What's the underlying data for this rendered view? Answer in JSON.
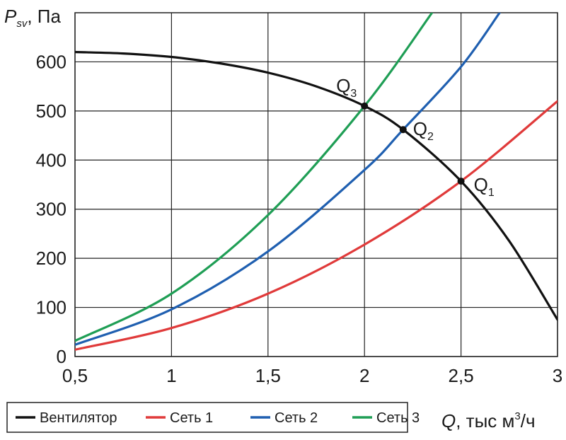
{
  "chart_data": {
    "type": "line",
    "ylabel": {
      "symbol": "P",
      "sub": "sv",
      "unit": ", Па"
    },
    "xlabel": {
      "symbol": "Q",
      "unit": ", тыс м",
      "sup": "3",
      "tail": "/ч"
    },
    "xlim": [
      0.5,
      3
    ],
    "ylim": [
      0,
      700
    ],
    "x_ticks": [
      "0,5",
      "1",
      "1,5",
      "2",
      "2,5",
      "3"
    ],
    "x_tick_values": [
      0.5,
      1,
      1.5,
      2,
      2.5,
      3
    ],
    "y_ticks": [
      "0",
      "100",
      "200",
      "300",
      "400",
      "500",
      "600"
    ],
    "y_tick_values": [
      0,
      100,
      200,
      300,
      400,
      500,
      600
    ],
    "grid": true,
    "legend_position": "bottom-left",
    "series": [
      {
        "name": "Вентилятор",
        "color": "#111111",
        "x": [
          0.5,
          0.75,
          1,
          1.25,
          1.5,
          1.75,
          2,
          2.2,
          2.5,
          2.75,
          3
        ],
        "y": [
          620,
          617,
          610,
          597,
          578,
          550,
          510,
          462,
          357,
          235,
          75
        ]
      },
      {
        "name": "Сеть 1",
        "color": "#e03a3a",
        "x": [
          0.5,
          1,
          1.5,
          2,
          2.5,
          3
        ],
        "y": [
          14,
          58,
          128,
          228,
          357,
          520
        ]
      },
      {
        "name": "Сеть 2",
        "color": "#1f5fb0",
        "x": [
          0.5,
          1,
          1.5,
          2,
          2.2,
          2.5,
          2.7
        ],
        "y": [
          24,
          96,
          214,
          380,
          462,
          590,
          700
        ]
      },
      {
        "name": "Сеть 3",
        "color": "#1f9e55",
        "x": [
          0.5,
          1,
          1.5,
          2,
          2.35
        ],
        "y": [
          32,
          128,
          288,
          510,
          700
        ]
      }
    ],
    "operating_points": [
      {
        "label": "Q",
        "sub": "3",
        "x": 2.0,
        "y": 510
      },
      {
        "label": "Q",
        "sub": "2",
        "x": 2.2,
        "y": 462
      },
      {
        "label": "Q",
        "sub": "1",
        "x": 2.5,
        "y": 357
      }
    ]
  }
}
